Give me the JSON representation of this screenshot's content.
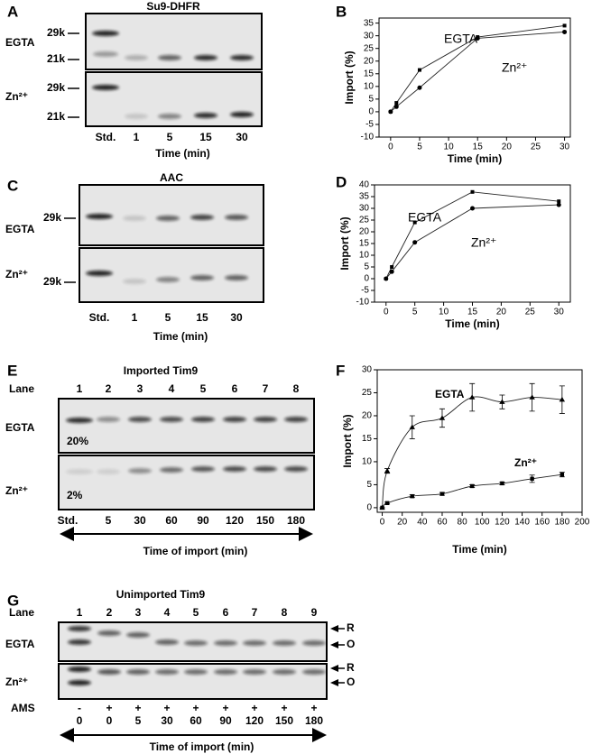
{
  "gels": [
    {
      "panel": "A",
      "title": "Su9-DHFR",
      "rows": [
        {
          "label": "EGTA",
          "markers": [
            "29k",
            "21k"
          ]
        },
        {
          "label": "Zn²⁺",
          "markers": [
            "29k",
            "21k"
          ]
        }
      ],
      "lanes": [
        "Std.",
        "1",
        "5",
        "15",
        "30"
      ],
      "xlabel": "Time (min)"
    },
    {
      "panel": "C",
      "title": "AAC",
      "rows": [
        {
          "label": "EGTA",
          "markers": [
            "29k"
          ]
        },
        {
          "label": "Zn²⁺",
          "markers": [
            "29k"
          ]
        }
      ],
      "lanes": [
        "Std.",
        "1",
        "5",
        "15",
        "30"
      ],
      "xlabel": "Time (min)"
    },
    {
      "panel": "E",
      "title": "Imported Tim9",
      "lane_label": "Lane",
      "lane_numbers": [
        1,
        2,
        3,
        4,
        5,
        6,
        7,
        8
      ],
      "rows": [
        {
          "label": "EGTA",
          "note": "20%"
        },
        {
          "label": "Zn²⁺",
          "note": "2%"
        }
      ],
      "lanes": [
        "Std.",
        "5",
        "30",
        "60",
        "90",
        "120",
        "150",
        "180"
      ],
      "xlabel": "Time of import (min)"
    },
    {
      "panel": "G",
      "title": "Unimported Tim9",
      "lane_label": "Lane",
      "lane_numbers": [
        1,
        2,
        3,
        4,
        5,
        6,
        7,
        8,
        9
      ],
      "rows": [
        {
          "label": "EGTA",
          "markers_right": [
            "R",
            "O"
          ]
        },
        {
          "label": "Zn²⁺",
          "markers_right": [
            "R",
            "O"
          ]
        }
      ],
      "treatment_label": "AMS",
      "treatment": [
        "-",
        "+",
        "+",
        "+",
        "+",
        "+",
        "+",
        "+",
        "+"
      ],
      "lanes": [
        "0",
        "0",
        "5",
        "30",
        "60",
        "90",
        "120",
        "150",
        "180"
      ],
      "xlabel": "Time of import (min)"
    }
  ],
  "chart_data": [
    {
      "type": "line",
      "panel": "B",
      "xlabel": "Time (min)",
      "ylabel": "Import (%)",
      "x": [
        0,
        1,
        5,
        15,
        30
      ],
      "series": [
        {
          "name": "EGTA",
          "marker": "square",
          "values": [
            0,
            3.5,
            16.5,
            29.5,
            34
          ]
        },
        {
          "name": "Zn²⁺",
          "marker": "circle",
          "values": [
            0,
            2,
            9.5,
            29,
            31.5
          ]
        }
      ],
      "xlim": [
        -2,
        31
      ],
      "ylim": [
        -10,
        37
      ],
      "xticks": [
        0,
        5,
        10,
        15,
        20,
        25,
        30
      ],
      "yticks": [
        -10,
        -5,
        0,
        5,
        10,
        15,
        20,
        25,
        30,
        35
      ]
    },
    {
      "type": "line",
      "panel": "D",
      "xlabel": "Time (min)",
      "ylabel": "Import (%)",
      "x": [
        0,
        1,
        5,
        15,
        30
      ],
      "series": [
        {
          "name": "EGTA",
          "marker": "square",
          "values": [
            0,
            5,
            24,
            37,
            33
          ]
        },
        {
          "name": "Zn²⁺",
          "marker": "circle",
          "values": [
            0,
            3,
            15.5,
            30,
            31.5
          ]
        }
      ],
      "xlim": [
        -2,
        32
      ],
      "ylim": [
        -10,
        40
      ],
      "xticks": [
        0,
        5,
        10,
        15,
        20,
        25,
        30
      ],
      "yticks": [
        -10,
        -5,
        0,
        5,
        10,
        15,
        20,
        25,
        30,
        35,
        40
      ]
    },
    {
      "type": "line",
      "panel": "F",
      "xlabel": "Time (min)",
      "ylabel": "Import (%)",
      "smooth": true,
      "x": [
        0,
        5,
        30,
        60,
        90,
        120,
        150,
        180
      ],
      "series": [
        {
          "name": "EGTA",
          "marker": "triangle",
          "values": [
            0,
            8,
            17.5,
            19.5,
            24,
            23,
            24,
            23.5
          ],
          "errors": [
            0,
            0.5,
            2.5,
            2,
            3,
            1.5,
            3,
            3
          ]
        },
        {
          "name": "Zn²⁺",
          "marker": "square",
          "values": [
            0,
            1,
            2.5,
            3,
            4.7,
            5.3,
            6.3,
            7.2
          ],
          "errors": [
            0,
            0.2,
            0.3,
            0.3,
            0.3,
            0.3,
            0.8,
            0.5
          ]
        }
      ],
      "xlim": [
        -5,
        200
      ],
      "ylim": [
        -1,
        30
      ],
      "xticks": [
        0,
        20,
        40,
        60,
        80,
        100,
        120,
        140,
        160,
        180,
        200
      ],
      "yticks": [
        0,
        5,
        10,
        15,
        20,
        25,
        30
      ]
    }
  ]
}
